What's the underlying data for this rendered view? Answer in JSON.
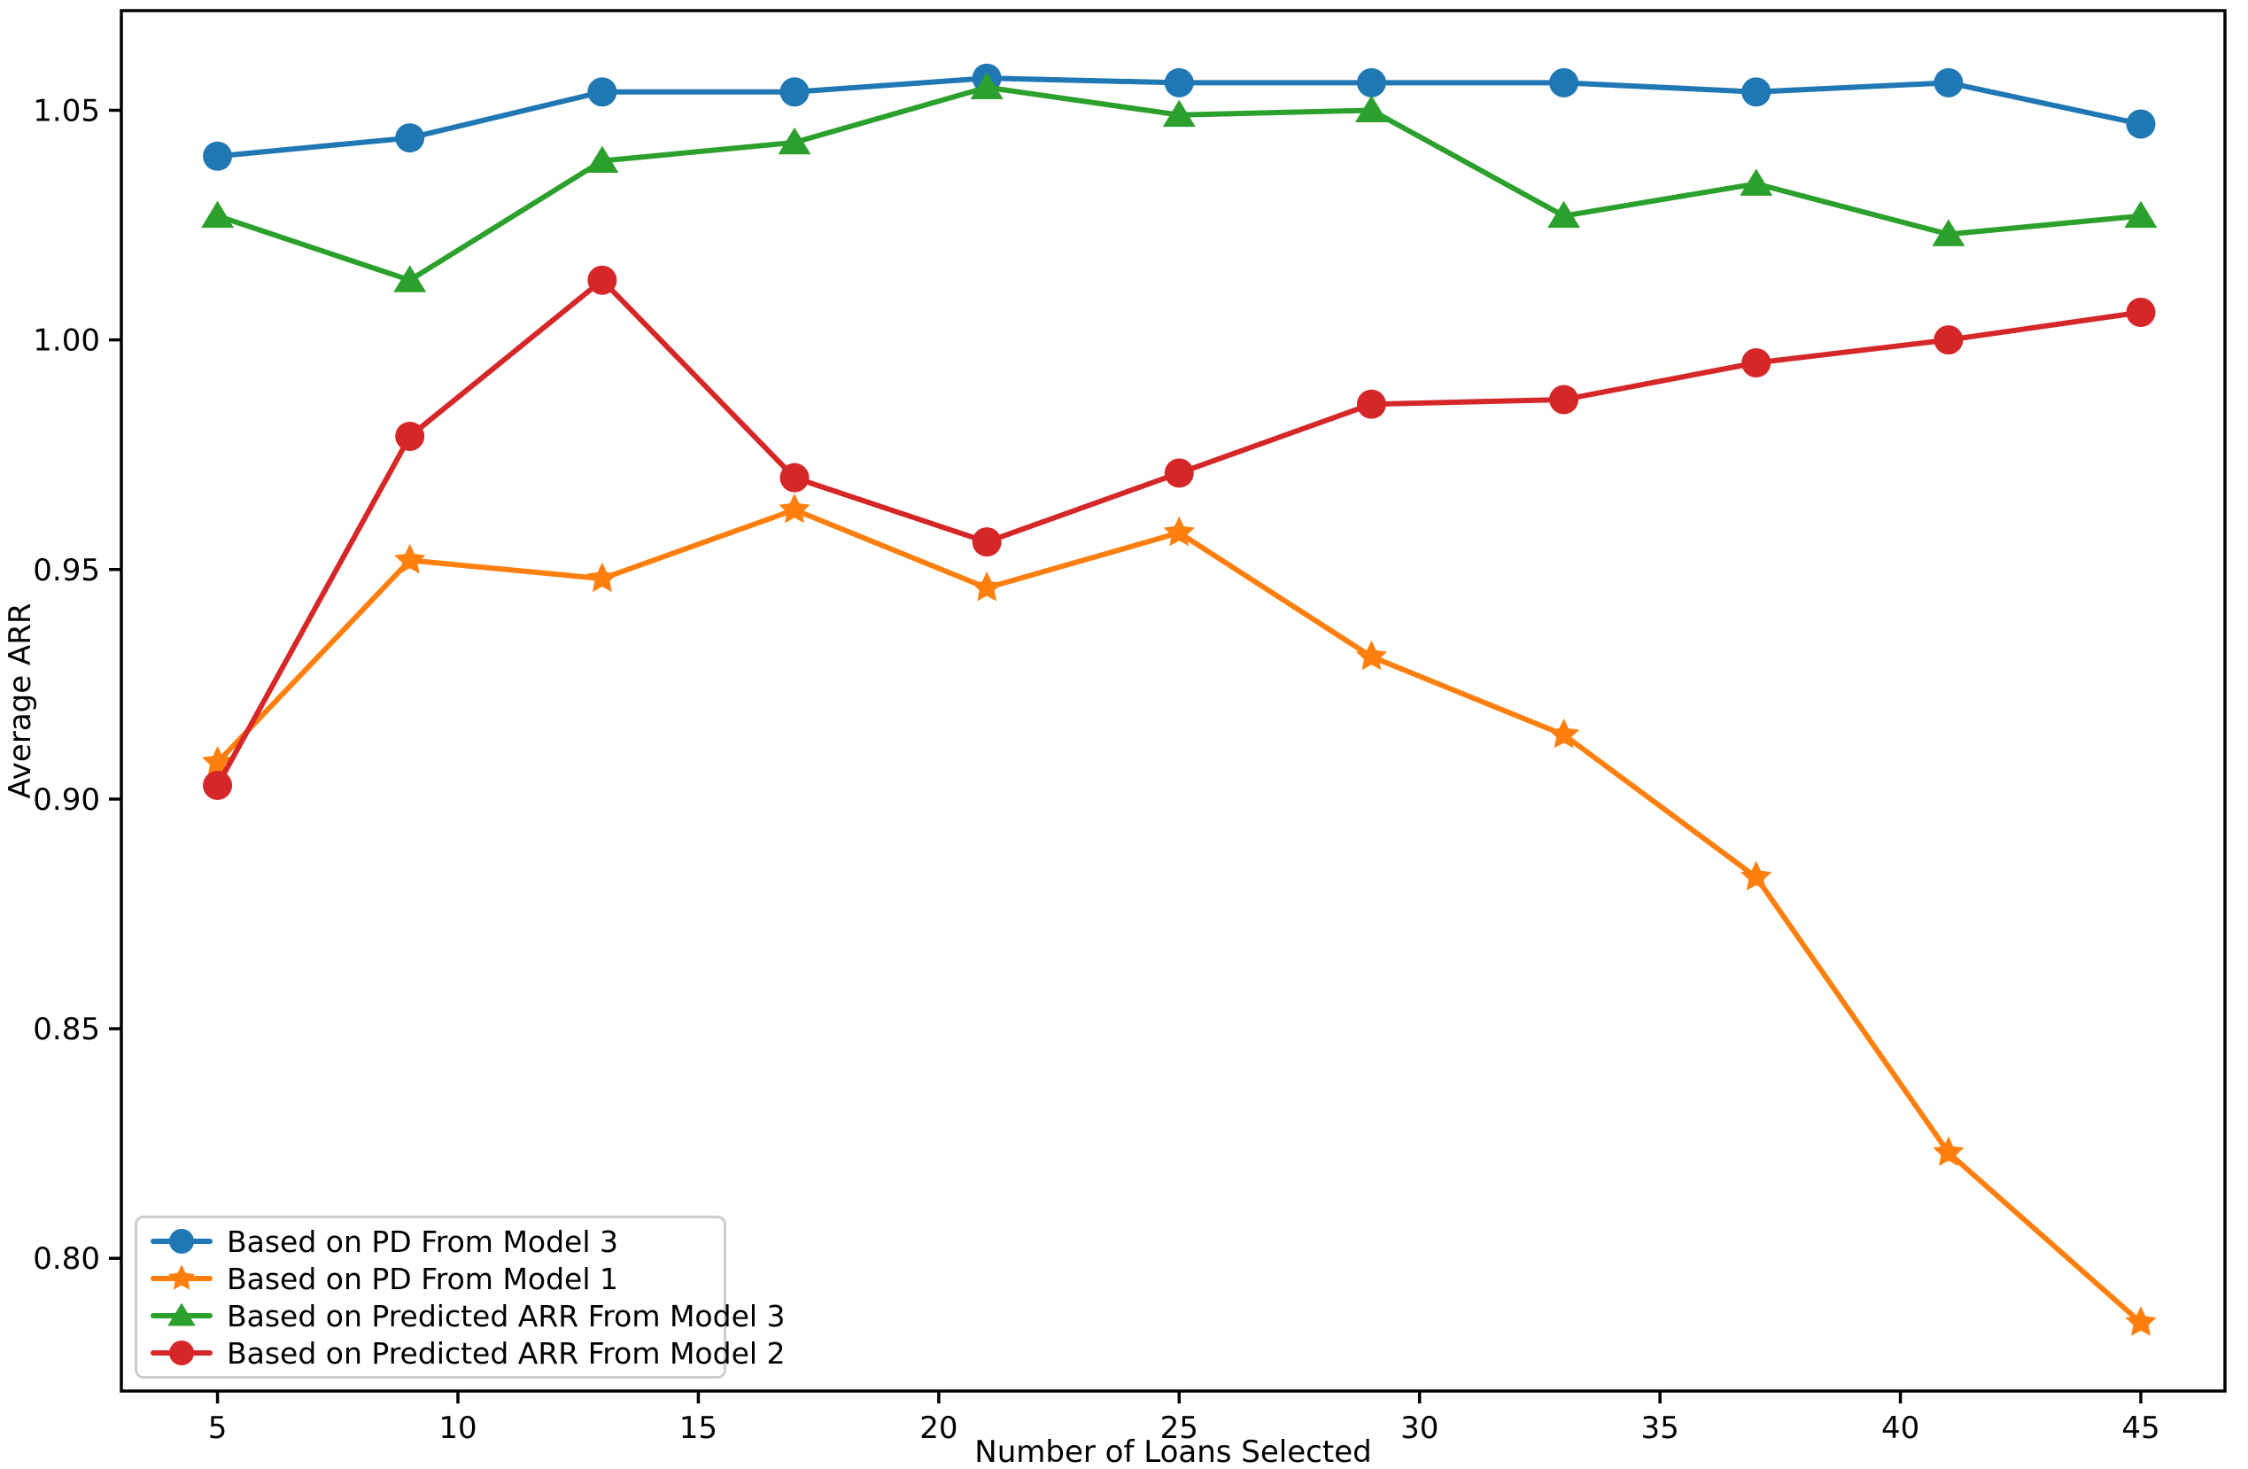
{
  "chart_data": {
    "type": "line",
    "title": "",
    "xlabel": "Number of Loans Selected",
    "ylabel": "Average ARR",
    "x": [
      5,
      9,
      13,
      17,
      21,
      25,
      29,
      33,
      37,
      41,
      45
    ],
    "series": [
      {
        "name": "Based on PD From Model 3",
        "color": "#1f77b4",
        "marker": "circle",
        "values": [
          1.04,
          1.044,
          1.054,
          1.054,
          1.057,
          1.056,
          1.056,
          1.056,
          1.054,
          1.056,
          1.047
        ]
      },
      {
        "name": "Based on PD From Model 1",
        "color": "#ff7f0e",
        "marker": "star",
        "values": [
          0.908,
          0.952,
          0.948,
          0.963,
          0.946,
          0.958,
          0.931,
          0.914,
          0.883,
          0.823,
          0.786
        ]
      },
      {
        "name": "Based on Predicted ARR From Model 3",
        "color": "#2ca02c",
        "marker": "triangle",
        "values": [
          1.027,
          1.013,
          1.039,
          1.043,
          1.055,
          1.049,
          1.05,
          1.027,
          1.034,
          1.023,
          1.027
        ]
      },
      {
        "name": "Based on Predicted ARR From Model 2",
        "color": "#d62728",
        "marker": "circle",
        "values": [
          0.903,
          0.979,
          1.013,
          0.97,
          0.956,
          0.971,
          0.986,
          0.987,
          0.995,
          1.0,
          1.006
        ]
      }
    ],
    "x_ticks": [
      5,
      10,
      15,
      20,
      25,
      30,
      35,
      40,
      45
    ],
    "y_ticks": [
      0.8,
      0.85,
      0.9,
      0.95,
      1.0,
      1.05
    ],
    "y_tick_labels": [
      "0.80",
      "0.85",
      "0.90",
      "0.95",
      "1.00",
      "1.05"
    ],
    "xlim": [
      3.0,
      46.75
    ],
    "ylim": [
      0.7711,
      1.0717
    ],
    "grid": false,
    "legend_position": "lower left",
    "axis_color": "#000000",
    "background_color": "#ffffff",
    "legend_frame_color": "#cccccc"
  }
}
